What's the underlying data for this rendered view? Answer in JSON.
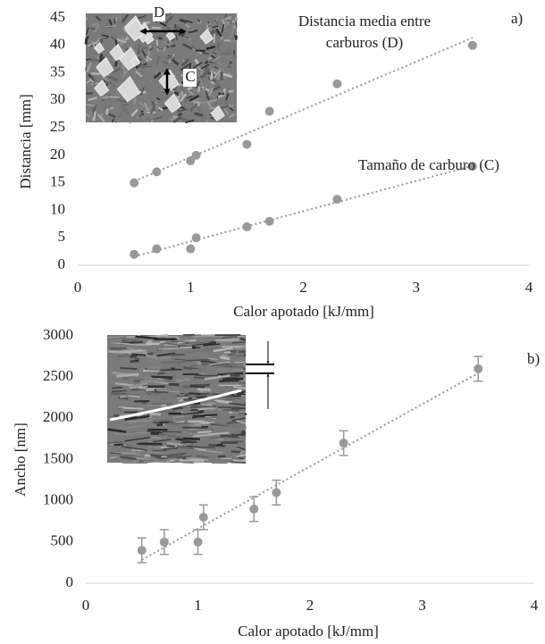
{
  "chart_data": [
    {
      "type": "scatter",
      "x_label": "Calor apotado [kJ/mm]",
      "y_label": "Distancia [mm]",
      "panel_label": "a)",
      "inset_labels": [
        "D",
        "C"
      ],
      "xlim": [
        0,
        4
      ],
      "xticks": [
        0,
        1,
        2,
        3,
        4
      ],
      "ylim": [
        0,
        45
      ],
      "yticks": [
        0,
        5,
        10,
        15,
        20,
        25,
        30,
        35,
        40,
        45
      ],
      "trendline": true,
      "series": [
        {
          "name": "Distancia media entre carburos (D)",
          "color": "#999999",
          "x": [
            0.5,
            0.7,
            1,
            1.05,
            1.5,
            1.7,
            2.3,
            3.5
          ],
          "values": [
            15,
            17,
            19,
            20,
            22,
            28,
            33,
            40
          ]
        },
        {
          "name": "Tamaño de carburo (C)",
          "color": "#999999",
          "x": [
            0.5,
            0.7,
            1,
            1.05,
            1.5,
            1.7,
            2.3,
            3.5
          ],
          "values": [
            2,
            3,
            3,
            5,
            7,
            8,
            12,
            18
          ]
        }
      ]
    },
    {
      "type": "scatter",
      "x_label": "Calor apotado [kJ/mm]",
      "y_label": "Ancho [nm]",
      "panel_label": "b)",
      "xlim": [
        0,
        4
      ],
      "xticks": [
        0,
        1,
        2,
        3,
        4
      ],
      "ylim": [
        0,
        3000
      ],
      "yticks": [
        0,
        500,
        1000,
        1500,
        2000,
        2500,
        3000
      ],
      "trendline": true,
      "series": [
        {
          "color": "#999999",
          "x": [
            0.5,
            0.7,
            1,
            1.05,
            1.5,
            1.7,
            2.3,
            3.5
          ],
          "values": [
            400,
            500,
            500,
            800,
            900,
            1100,
            1700,
            2600
          ],
          "errors": [
            150,
            150,
            150,
            150,
            150,
            150,
            150,
            150
          ]
        }
      ]
    }
  ]
}
